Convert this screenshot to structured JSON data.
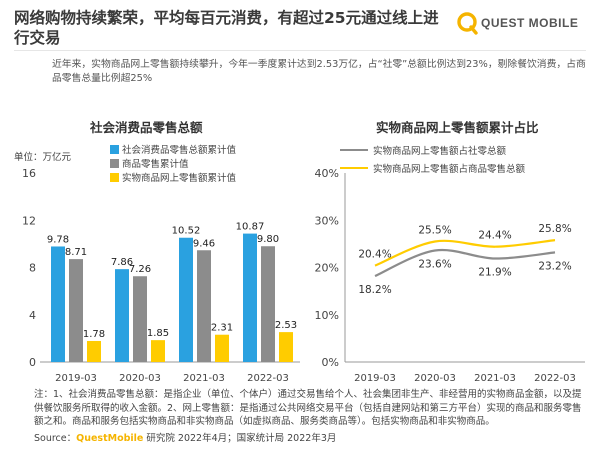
{
  "header": {
    "title": "网络购物持续繁荣，平均每百元消费，有超过25元通过线上进行交易",
    "logo_text": "QUEST MOBILE",
    "intro": "近年来，实物商品网上零售额持续攀升，今年一季度累计达到2.53万亿，占“社零”总额比例达到23%，剔除餐饮消费，占商品零售总量比例超25%"
  },
  "footer": {
    "note": "注：1、社会消费品零售总额：是指企业（单位、个体户）通过交易售给个人、社会集团非生产、非经营用的实物商品金额，以及提供餐饮服务所取得的收入金额。2、网上零售额：是指通过公共网络交易平台（包括自建网站和第三方平台）实现的商品和服务零售额之和。商品和服务包括实物商品和非实物商品（如虚拟商品、服务类商品等）。包括实物商品和非实物商品。",
    "source_label": "Source：",
    "source_brand": "QuestMobile",
    "source_rest": " 研究院 2022年4月；国家统计局 2022年3月"
  },
  "colors": {
    "blue": "#2aa1e0",
    "gray": "#8c8c8c",
    "yellow": "#ffcc00",
    "axis": "#999999",
    "grid": "#d9d9d9"
  },
  "chart_data": [
    {
      "type": "bar",
      "title": "社会消费品零售总额",
      "unit": "单位：万亿元",
      "categories": [
        "2019-03",
        "2020-03",
        "2021-03",
        "2022-03"
      ],
      "series": [
        {
          "name": "社会消费品零售总额累计值",
          "color": "#2aa1e0",
          "values": [
            9.78,
            7.86,
            10.52,
            10.87
          ]
        },
        {
          "name": "商品零售累计值",
          "color": "#8c8c8c",
          "values": [
            8.71,
            7.26,
            9.46,
            9.8
          ]
        },
        {
          "name": "实物商品网上零售额累计值",
          "color": "#ffcc00",
          "values": [
            1.78,
            1.85,
            2.31,
            2.53
          ]
        }
      ],
      "ylim": [
        0,
        16
      ],
      "yticks": [
        0,
        4,
        8,
        12,
        16
      ],
      "grid": false,
      "legend": "top"
    },
    {
      "type": "line",
      "title": "实物商品网上零售额累计占比",
      "categories": [
        "2019-03",
        "2020-03",
        "2021-03",
        "2022-03"
      ],
      "series": [
        {
          "name": "实物商品网上零售额占社零总额",
          "color": "#8c8c8c",
          "values": [
            18.2,
            23.6,
            21.9,
            23.2
          ],
          "labels": [
            "18.2%",
            "23.6%",
            "21.9%",
            "23.2%"
          ]
        },
        {
          "name": "实物商品网上零售额占商品零售总额",
          "color": "#ffcc00",
          "values": [
            20.4,
            25.5,
            24.4,
            25.8
          ],
          "labels": [
            "20.4%",
            "25.5%",
            "24.4%",
            "25.8%"
          ]
        }
      ],
      "ylim": [
        0,
        40
      ],
      "yticks": [
        0,
        10,
        20,
        30,
        40
      ],
      "ytick_labels": [
        "0%",
        "10%",
        "20%",
        "30%",
        "40%"
      ],
      "grid": false,
      "legend": "top"
    }
  ]
}
